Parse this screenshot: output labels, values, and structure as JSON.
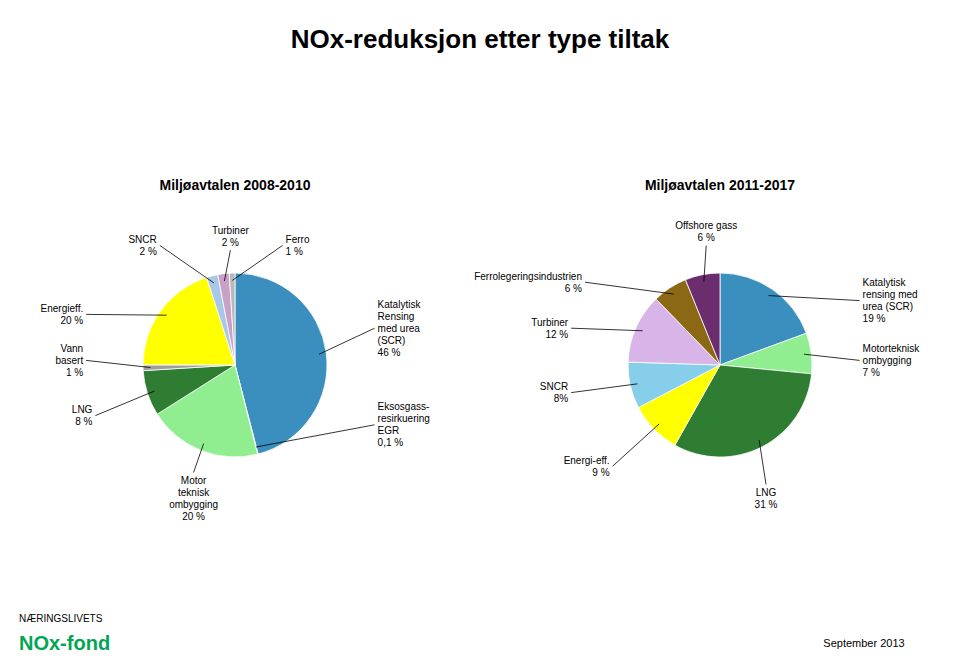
{
  "title": "NOx-reduksjon etter type tiltak",
  "annotations": [
    {
      "text": "NÆRINGSLIVETS"
    },
    {
      "text": "NOx-fond",
      "color": "#00a651"
    },
    {
      "text": "September 2013"
    }
  ],
  "chart_data": [
    {
      "type": "pie",
      "title": "Miljøavtalen 2008-2010",
      "categories": [
        "Katalytisk\nRensing\nmed urea\n(SCR)",
        "Eksosgass-\nresirkuering\nEGR",
        "Motor\nteknisk\nombygging",
        "LNG",
        "Vann\nbasert",
        "Energieff.",
        "SNCR",
        "Turbiner",
        "Ferro"
      ],
      "values": [
        46,
        0.1,
        20,
        8,
        1,
        20,
        2,
        2,
        1
      ],
      "value_labels": [
        "46 %",
        "0,1 %",
        "20 %",
        "8 %",
        "1 %",
        "20 %",
        "2 %",
        "2 %",
        "1 %"
      ],
      "data_labels": true,
      "colors": [
        "#3a8fbf",
        "#1a2e6e",
        "#90ee90",
        "#2e7d32",
        "#9e9e9e",
        "#ffff00",
        "#a8c8e8",
        "#c8a0c8",
        "#b8b8b8"
      ]
    },
    {
      "type": "pie",
      "title": "Miljøavtalen 2011-2017",
      "categories": [
        "Katalytisk\nrensing med\nurea (SCR)",
        "Motorteknisk\nombygging",
        "LNG",
        "Energi-eff.",
        "SNCR",
        "Turbiner",
        "Ferrolegeringsindustrien",
        "Offshore gass"
      ],
      "values": [
        19,
        7,
        31,
        9,
        8,
        12,
        6,
        6
      ],
      "value_labels": [
        "19 %",
        "7 %",
        "31 %",
        "9 %",
        "8%",
        "12 %",
        "6 %",
        "6 %"
      ],
      "data_labels": true,
      "colors": [
        "#3a8fbf",
        "#90ee90",
        "#2e7d32",
        "#ffff00",
        "#87ceeb",
        "#d8b4e8",
        "#8b6914",
        "#6b2d6e"
      ]
    }
  ]
}
